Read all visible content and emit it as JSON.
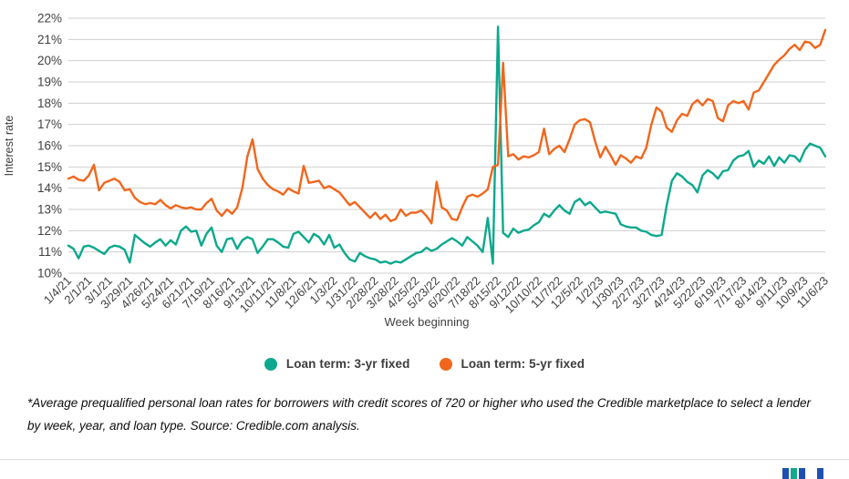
{
  "chart": {
    "y_axis_title": "Interest rate",
    "x_axis_title": "Week beginning"
  },
  "chart_data": {
    "type": "line",
    "title": "",
    "xlabel": "Week beginning",
    "ylabel": "Interest rate",
    "ylim": [
      10,
      22
    ],
    "y_tick_step": 1,
    "y_tick_labels": [
      "22%",
      "21%",
      "20%",
      "19%",
      "18%",
      "17%",
      "16%",
      "15%",
      "14%",
      "13%",
      "12%",
      "11%",
      "10%"
    ],
    "grid": "horizontal",
    "legend_position": "bottom-center",
    "points_per_tick": 4,
    "x_tick_labels": [
      "1/4/21",
      "2/1/21",
      "3/1/21",
      "3/29/21",
      "4/26/21",
      "5/24/21",
      "6/21/21",
      "7/19/21",
      "8/16/21",
      "9/13/21",
      "10/11/21",
      "11/8/21",
      "12/6/21",
      "1/3/22",
      "1/31/22",
      "2/28/22",
      "3/28/22",
      "4/25/22",
      "5/23/22",
      "6/20/22",
      "7/18/22",
      "8/15/22",
      "9/12/22",
      "10/10/22",
      "11/7/22",
      "12/5/22",
      "1/2/23",
      "1/30/23",
      "2/27/23",
      "3/27/23",
      "4/24/23",
      "5/22/23",
      "6/19/23",
      "7/17/23",
      "8/14/23",
      "9/11/23",
      "10/9/23",
      "11/6/23"
    ],
    "x_unit": "weekly points; labels shown every 4th week",
    "series": [
      {
        "name": "Loan term: 3-yr fixed",
        "color": "#0ca88d",
        "values": [
          11.3,
          11.15,
          10.7,
          11.25,
          11.3,
          11.2,
          11.05,
          10.9,
          11.2,
          11.3,
          11.25,
          11.1,
          10.5,
          11.8,
          11.6,
          11.4,
          11.25,
          11.45,
          11.6,
          11.3,
          11.55,
          11.35,
          12.0,
          12.2,
          11.95,
          12.0,
          11.3,
          11.85,
          12.15,
          11.3,
          11.0,
          11.6,
          11.65,
          11.15,
          11.55,
          11.7,
          11.6,
          10.95,
          11.25,
          11.6,
          11.6,
          11.45,
          11.25,
          11.2,
          11.85,
          11.95,
          11.7,
          11.45,
          11.85,
          11.7,
          11.35,
          11.8,
          11.2,
          11.35,
          10.95,
          10.65,
          10.55,
          10.95,
          10.8,
          10.7,
          10.65,
          10.5,
          10.55,
          10.45,
          10.55,
          10.5,
          10.65,
          10.8,
          10.95,
          11.0,
          11.2,
          11.05,
          11.15,
          11.35,
          11.5,
          11.65,
          11.5,
          11.3,
          11.7,
          11.5,
          11.3,
          11.0,
          12.6,
          10.45,
          21.6,
          11.9,
          11.7,
          12.1,
          11.9,
          12.0,
          12.05,
          12.25,
          12.4,
          12.8,
          12.65,
          12.95,
          13.2,
          12.95,
          12.8,
          13.35,
          13.5,
          13.2,
          13.35,
          13.1,
          12.85,
          12.9,
          12.85,
          12.8,
          12.3,
          12.2,
          12.15,
          12.15,
          12.0,
          11.95,
          11.8,
          11.75,
          11.8,
          13.2,
          14.35,
          14.7,
          14.55,
          14.3,
          14.15,
          13.8,
          14.6,
          14.85,
          14.7,
          14.45,
          14.8,
          14.85,
          15.3,
          15.5,
          15.55,
          15.75,
          15.0,
          15.3,
          15.15,
          15.5,
          15.05,
          15.45,
          15.2,
          15.55,
          15.5,
          15.25,
          15.8,
          16.1,
          16.0,
          15.9,
          15.5
        ]
      },
      {
        "name": "Loan term: 5-yr fixed",
        "color": "#f1661c",
        "values": [
          14.45,
          14.55,
          14.4,
          14.35,
          14.6,
          15.1,
          13.9,
          14.25,
          14.35,
          14.45,
          14.3,
          13.9,
          13.95,
          13.55,
          13.35,
          13.25,
          13.3,
          13.25,
          13.45,
          13.2,
          13.05,
          13.2,
          13.1,
          13.05,
          13.1,
          13.0,
          13.0,
          13.3,
          13.5,
          12.95,
          12.7,
          13.0,
          12.8,
          13.1,
          14.0,
          15.5,
          16.3,
          14.9,
          14.45,
          14.15,
          13.95,
          13.85,
          13.7,
          14.0,
          13.85,
          13.75,
          15.05,
          14.25,
          14.3,
          14.35,
          14.0,
          14.1,
          13.95,
          13.8,
          13.5,
          13.2,
          13.35,
          13.1,
          12.85,
          12.6,
          12.85,
          12.55,
          12.75,
          12.45,
          12.55,
          13.0,
          12.7,
          12.85,
          12.85,
          12.95,
          12.7,
          12.35,
          14.3,
          13.1,
          12.95,
          12.55,
          12.5,
          13.1,
          13.6,
          13.7,
          13.6,
          13.75,
          13.95,
          15.0,
          15.1,
          19.9,
          15.5,
          15.6,
          15.35,
          15.5,
          15.45,
          15.55,
          15.7,
          16.8,
          15.6,
          15.85,
          16.0,
          15.7,
          16.3,
          17.0,
          17.2,
          17.25,
          17.1,
          16.2,
          15.45,
          15.95,
          15.55,
          15.1,
          15.55,
          15.4,
          15.2,
          15.5,
          15.4,
          15.9,
          17.0,
          17.8,
          17.6,
          16.85,
          16.65,
          17.2,
          17.5,
          17.4,
          17.95,
          18.15,
          17.9,
          18.2,
          18.1,
          17.3,
          17.15,
          17.9,
          18.1,
          18.0,
          18.1,
          17.7,
          18.5,
          18.6,
          19.0,
          19.4,
          19.8,
          20.05,
          20.25,
          20.55,
          20.75,
          20.5,
          20.9,
          20.85,
          20.6,
          20.75,
          21.45
        ]
      }
    ]
  },
  "legend": {
    "items": [
      {
        "label": "Loan term: 3-yr fixed",
        "color": "#0ca88d"
      },
      {
        "label": "Loan term: 5-yr fixed",
        "color": "#f1661c"
      }
    ]
  },
  "footnote": {
    "text": "*Average prequalified personal loan rates for borrowers with credit scores of 720 or higher who used the Credible marketplace to select a lender by week, year, and loan type. Source: Credible.com analysis."
  },
  "footer": {
    "logo_square_colors": [
      "#1d50b0",
      "#15a98c",
      "#1d50b0",
      "#1d50b0"
    ]
  },
  "style": {
    "axis_text_color": "#404040",
    "gridline_color": "#cfcfcf"
  }
}
